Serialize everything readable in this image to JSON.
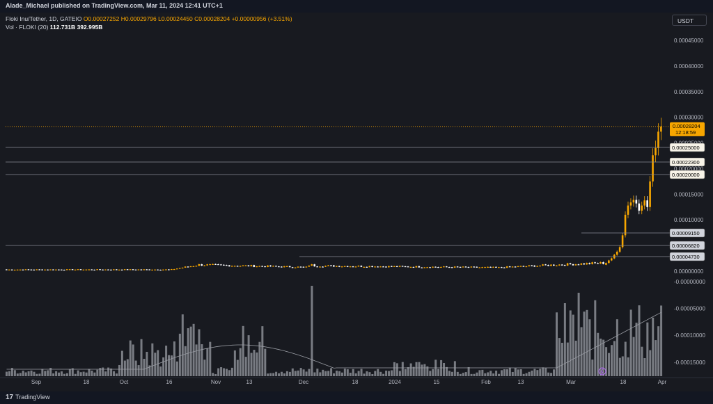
{
  "header": {
    "published": "Alade_Michael published on TradingView.com, Mar 11, 2024 12:41 UTC+1"
  },
  "legend": {
    "symbol": "Floki Inu/Tether, 1D, GATEIO",
    "open": "O0.00027252",
    "high": "H0.00029796",
    "low": "L0.00024450",
    "close": "C0.00028204",
    "change": "+0.00000956 (+3.51%)",
    "vol_label": "Vol · FLOKI (20)",
    "vol_value": "112.731B",
    "vol_ma": "392.995B"
  },
  "currency_button": "USDT",
  "footer": {
    "brand": "TradingView",
    "logo_glyph": "17"
  },
  "colors": {
    "up": "#f7a600",
    "down": "#ffffff",
    "background": "#181a20",
    "volume": "#9a9da4"
  },
  "chart_data": {
    "type": "candlestick",
    "y_axis_ticks": [
      "0.00045000",
      "0.00040000",
      "0.00035000",
      "0.00030000",
      "0.00025000",
      "0.00020000",
      "0.00015000",
      "0.00010000",
      "0.00005000",
      "0.00000000",
      "-0.00000000",
      "-0.00005000",
      "-0.00010000",
      "-0.00015000"
    ],
    "x_axis_ticks": [
      "Sep",
      "18",
      "Oct",
      "16",
      "Nov",
      "13",
      "Dec",
      "18",
      "2024",
      "15",
      "Feb",
      "13",
      "Mar",
      "18",
      "Apr"
    ],
    "current_price": "0.00028204",
    "countdown": "12:18:59",
    "levels": [
      "0.00025000",
      "0.00022300",
      "0.00020000",
      "0.00009150",
      "0.00006820",
      "0.00004730"
    ]
  }
}
